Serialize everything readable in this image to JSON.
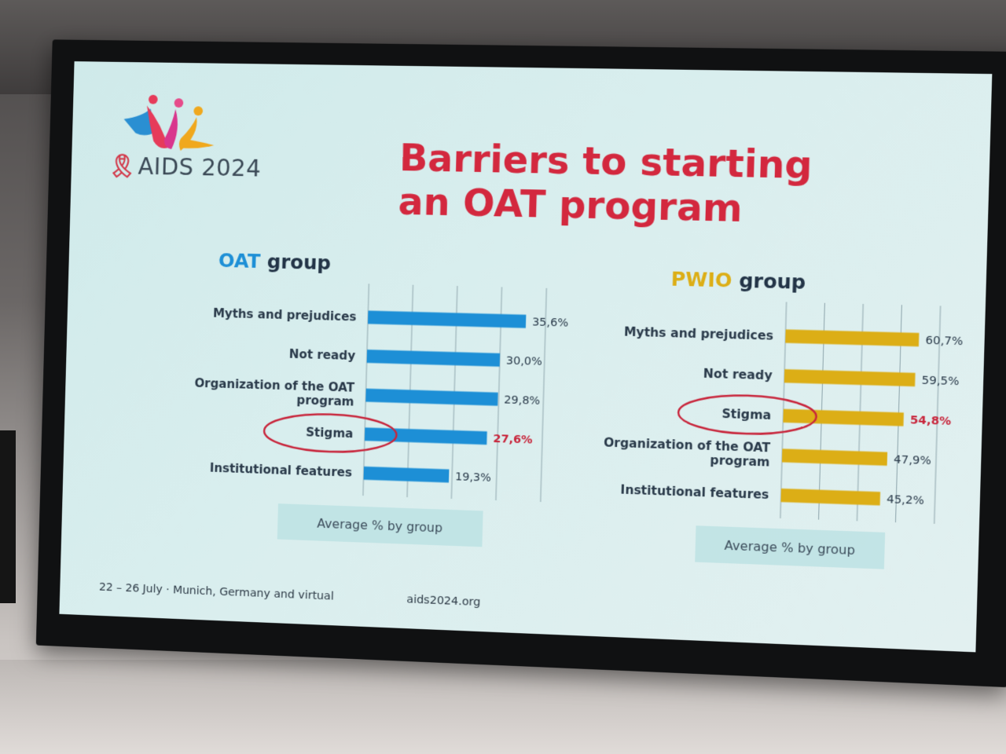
{
  "slide": {
    "title": "Barriers to starting an OAT program",
    "logo_text": "AIDS 2024",
    "footer_date": "22 – 26 July · Munich, Germany and virtual",
    "footer_url": "aids2024.org"
  },
  "colors": {
    "title": "#d3283e",
    "oat_bar": "#1d8fd6",
    "pwio_bar": "#dcae16",
    "highlight": "#c8253b",
    "slide_bg": "#d4ecec"
  },
  "chart_data": [
    {
      "type": "bar",
      "orientation": "horizontal",
      "title_accent": "OAT",
      "title_rest": "group",
      "categories": [
        "Myths and prejudices",
        "Not ready",
        "Organization of the OAT program",
        "Stigma",
        "Institutional features"
      ],
      "values": [
        35.6,
        30.0,
        29.8,
        27.6,
        19.3
      ],
      "value_labels": [
        "35,6%",
        "30,0%",
        "29,8%",
        "27,6%",
        "19,3%"
      ],
      "highlighted_category": "Stigma",
      "xlim": [
        0,
        40
      ],
      "grid": true,
      "note": "Average % by group"
    },
    {
      "type": "bar",
      "orientation": "horizontal",
      "title_accent": "PWIO",
      "title_rest": "group",
      "categories": [
        "Myths and prejudices",
        "Not ready",
        "Stigma",
        "Organization of the OAT program",
        "Institutional features"
      ],
      "values": [
        60.7,
        59.5,
        54.8,
        47.9,
        45.2
      ],
      "value_labels": [
        "60,7%",
        "59,5%",
        "54,8%",
        "47,9%",
        "45,2%"
      ],
      "highlighted_category": "Stigma",
      "xlim": [
        0,
        70
      ],
      "grid": true,
      "note": "Average % by group"
    }
  ]
}
